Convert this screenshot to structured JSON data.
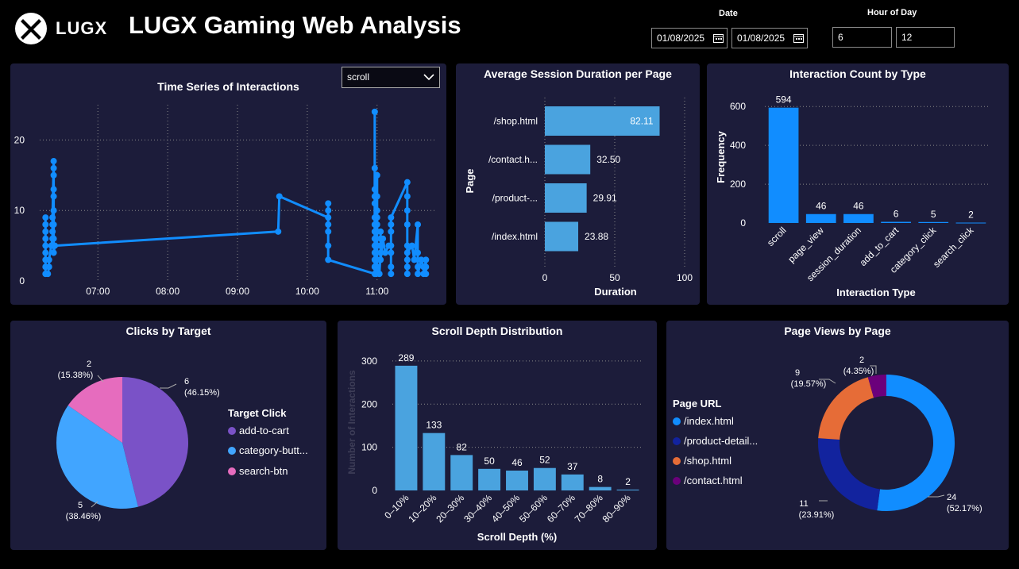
{
  "header": {
    "logo_text": "LUGX",
    "title": "LUGX Gaming Web Analysis",
    "date_label": "Date",
    "date_start": "01/08/2025",
    "date_end": "01/08/2025",
    "hour_label": "Hour of Day",
    "hour_start": "6",
    "hour_end": "12"
  },
  "colors": {
    "bg": "#000000",
    "panel": "#1c1c3a",
    "blue": "#118DFF",
    "bar": "#4aa3df",
    "purple": "#7a52c7",
    "lightblue": "#41a5ff",
    "pink": "#e66cbe",
    "navy": "#12239E",
    "orange": "#E66C37",
    "darkpurple": "#6B007B"
  },
  "charts": [
    {
      "type": "line",
      "title": "Time Series of Interactions",
      "dropdown": "scroll",
      "x_ticks": [
        "07:00",
        "08:00",
        "09:00",
        "10:00",
        "11:00"
      ],
      "y_ticks": [
        "0",
        "10",
        "20"
      ],
      "ylim": [
        0,
        25
      ],
      "xlim": [
        "06:10",
        "11:50"
      ],
      "points": [
        [
          "06:15",
          9
        ],
        [
          "06:15",
          8
        ],
        [
          "06:15",
          7
        ],
        [
          "06:15",
          6
        ],
        [
          "06:15",
          5
        ],
        [
          "06:15",
          4
        ],
        [
          "06:15",
          3
        ],
        [
          "06:15",
          2
        ],
        [
          "06:15",
          1
        ],
        [
          "06:17",
          1
        ],
        [
          "06:18",
          2
        ],
        [
          "06:18",
          3
        ],
        [
          "06:20",
          5
        ],
        [
          "06:21",
          6
        ],
        [
          "06:21",
          7
        ],
        [
          "06:21",
          8
        ],
        [
          "06:21",
          9
        ],
        [
          "06:22",
          17
        ],
        [
          "06:22",
          16
        ],
        [
          "06:22",
          15
        ],
        [
          "06:22",
          13
        ],
        [
          "06:22",
          12
        ],
        [
          "06:22",
          10
        ],
        [
          "06:22",
          8
        ],
        [
          "06:22",
          6
        ],
        [
          "06:22",
          5
        ],
        [
          "06:22",
          4
        ],
        [
          "06:23",
          5
        ],
        [
          "09:35",
          7
        ],
        [
          "09:36",
          12
        ],
        [
          "10:18",
          9
        ],
        [
          "10:18",
          11
        ],
        [
          "10:18",
          10
        ],
        [
          "10:18",
          8
        ],
        [
          "10:18",
          7
        ],
        [
          "10:18",
          5
        ],
        [
          "10:18",
          3
        ],
        [
          "10:58",
          1
        ],
        [
          "10:58",
          2
        ],
        [
          "10:58",
          3
        ],
        [
          "10:58",
          5
        ],
        [
          "10:58",
          7
        ],
        [
          "10:58",
          9
        ],
        [
          "10:58",
          24
        ],
        [
          "10:58",
          16
        ],
        [
          "10:58",
          13
        ],
        [
          "10:58",
          12
        ],
        [
          "10:58",
          11
        ],
        [
          "10:58",
          8
        ],
        [
          "10:58",
          6
        ],
        [
          "10:58",
          4
        ],
        [
          "10:58",
          2
        ],
        [
          "10:59",
          1
        ],
        [
          "11:00",
          3
        ],
        [
          "11:00",
          5
        ],
        [
          "11:00",
          7
        ],
        [
          "11:00",
          8
        ],
        [
          "11:00",
          9
        ],
        [
          "11:00",
          10
        ],
        [
          "11:00",
          12
        ],
        [
          "11:00",
          15
        ],
        [
          "11:00",
          2
        ],
        [
          "11:02",
          1
        ],
        [
          "11:03",
          4
        ],
        [
          "11:03",
          7
        ],
        [
          "11:03",
          5
        ],
        [
          "11:03",
          6
        ],
        [
          "11:03",
          3
        ],
        [
          "11:05",
          6
        ],
        [
          "11:07",
          4
        ],
        [
          "11:10",
          5
        ],
        [
          "11:12",
          5
        ],
        [
          "11:12",
          4
        ],
        [
          "11:12",
          2
        ],
        [
          "11:12",
          1
        ],
        [
          "11:12",
          7
        ],
        [
          "11:12",
          8
        ],
        [
          "11:12",
          9
        ],
        [
          "11:26",
          14
        ],
        [
          "11:26",
          12
        ],
        [
          "11:26",
          10
        ],
        [
          "11:26",
          8
        ],
        [
          "11:26",
          5
        ],
        [
          "11:26",
          3
        ],
        [
          "11:26",
          2
        ],
        [
          "11:26",
          1
        ],
        [
          "11:26",
          4
        ],
        [
          "11:30",
          5
        ],
        [
          "11:32",
          3
        ],
        [
          "11:35",
          8
        ],
        [
          "11:35",
          4
        ],
        [
          "11:35",
          2
        ],
        [
          "11:35",
          1
        ],
        [
          "11:38",
          3
        ],
        [
          "11:40",
          2
        ],
        [
          "11:40",
          1
        ],
        [
          "11:42",
          3
        ],
        [
          "11:42",
          2
        ],
        [
          "11:42",
          1
        ]
      ]
    },
    {
      "type": "bar",
      "orientation": "horizontal",
      "title": "Average Session Duration per Page",
      "xlabel": "Duration",
      "ylabel": "Page",
      "categories": [
        "/shop.html",
        "/contact.h...",
        "/product-...",
        "/index.html"
      ],
      "values": [
        82.11,
        32.5,
        29.91,
        23.88
      ],
      "value_labels": [
        "82.11",
        "32.50",
        "29.91",
        "23.88"
      ],
      "x_ticks": [
        "0",
        "50",
        "100"
      ],
      "xlim": [
        0,
        100
      ]
    },
    {
      "type": "bar",
      "title": "Interaction Count by Type",
      "xlabel": "Interaction Type",
      "ylabel": "Frequency",
      "categories": [
        "scroll",
        "page_view",
        "session_duration",
        "add_to_cart",
        "category_click",
        "search_click"
      ],
      "values": [
        594,
        46,
        46,
        6,
        5,
        2
      ],
      "y_ticks": [
        "0",
        "200",
        "400",
        "600"
      ],
      "ylim": [
        0,
        650
      ]
    },
    {
      "type": "pie",
      "title": "Clicks by Target",
      "legend_title": "Target Click",
      "labels": [
        "add-to-cart",
        "category-butt...",
        "search-btn"
      ],
      "values": [
        6,
        5,
        2
      ],
      "percents": [
        "(46.15%)",
        "(38.46%)",
        "(15.38%)"
      ],
      "value_labels": [
        "6",
        "5",
        "2"
      ],
      "colors": [
        "#7a52c7",
        "#41a5ff",
        "#e66cbe"
      ]
    },
    {
      "type": "bar",
      "title": "Scroll Depth Distribution",
      "xlabel": "Scroll Depth (%)",
      "ylabel": "Number of Interactions",
      "categories": [
        "0–10%",
        "10–20%",
        "20–30%",
        "30–40%",
        "40–50%",
        "50–60%",
        "60–70%",
        "70–80%",
        "80–90%"
      ],
      "values": [
        289,
        133,
        82,
        50,
        46,
        52,
        37,
        8,
        2
      ],
      "y_ticks": [
        "0",
        "100",
        "200",
        "300"
      ],
      "ylim": [
        0,
        320
      ]
    },
    {
      "type": "pie",
      "donut": true,
      "title": "Page Views by Page",
      "legend_title": "Page URL",
      "labels": [
        "/index.html",
        "/product-detail...",
        "/shop.html",
        "/contact.html"
      ],
      "values": [
        24,
        11,
        9,
        2
      ],
      "percents": [
        "(52.17%)",
        "(23.91%)",
        "(19.57%)",
        "(4.35%)"
      ],
      "value_labels": [
        "24",
        "11",
        "9",
        "2"
      ],
      "colors": [
        "#118DFF",
        "#12239E",
        "#E66C37",
        "#6B007B"
      ]
    }
  ]
}
